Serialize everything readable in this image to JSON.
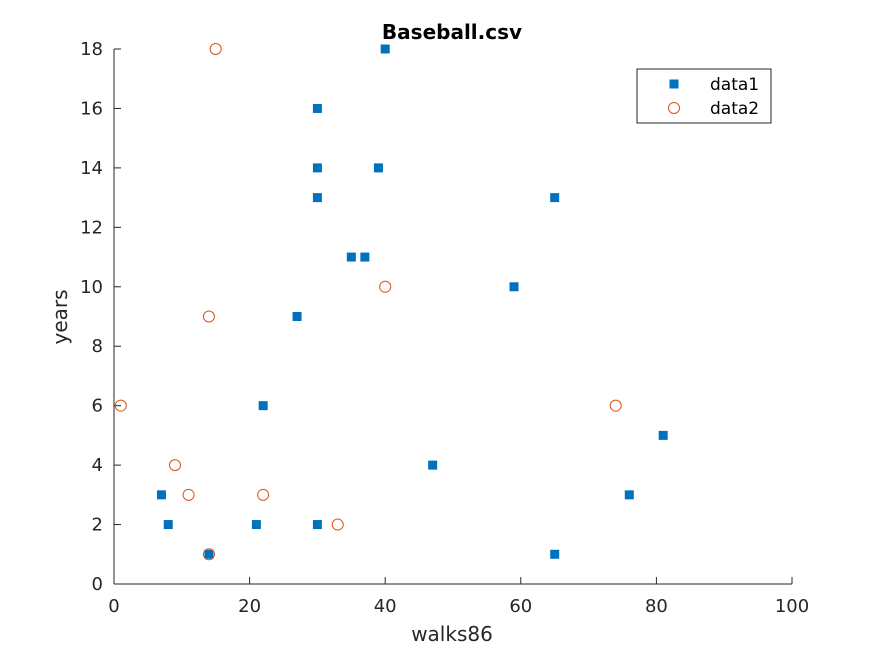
{
  "chart_data": {
    "type": "scatter",
    "title": "Baseball.csv",
    "xlabel": "walks86",
    "ylabel": "years",
    "xlim": [
      0,
      100
    ],
    "ylim": [
      0,
      18
    ],
    "xticks": [
      0,
      20,
      40,
      60,
      80,
      100
    ],
    "yticks": [
      0,
      2,
      4,
      6,
      8,
      10,
      12,
      14,
      16,
      18
    ],
    "grid": false,
    "legend_position": "top-right",
    "series": [
      {
        "name": "data1",
        "marker": "square",
        "color": "#0072BD",
        "points": [
          [
            40,
            18
          ],
          [
            30,
            16
          ],
          [
            30,
            14
          ],
          [
            39,
            14
          ],
          [
            30,
            13
          ],
          [
            65,
            13
          ],
          [
            35,
            11
          ],
          [
            37,
            11
          ],
          [
            59,
            10
          ],
          [
            27,
            9
          ],
          [
            22,
            6
          ],
          [
            81,
            5
          ],
          [
            47,
            4
          ],
          [
            7,
            3
          ],
          [
            76,
            3
          ],
          [
            8,
            2
          ],
          [
            21,
            2
          ],
          [
            30,
            2
          ],
          [
            14,
            1
          ],
          [
            65,
            1
          ]
        ]
      },
      {
        "name": "data2",
        "marker": "circle",
        "color": "#D95319",
        "points": [
          [
            15,
            18
          ],
          [
            40,
            10
          ],
          [
            14,
            9
          ],
          [
            1,
            6
          ],
          [
            74,
            6
          ],
          [
            9,
            4
          ],
          [
            11,
            3
          ],
          [
            22,
            3
          ],
          [
            33,
            2
          ],
          [
            14,
            1
          ]
        ]
      }
    ]
  }
}
